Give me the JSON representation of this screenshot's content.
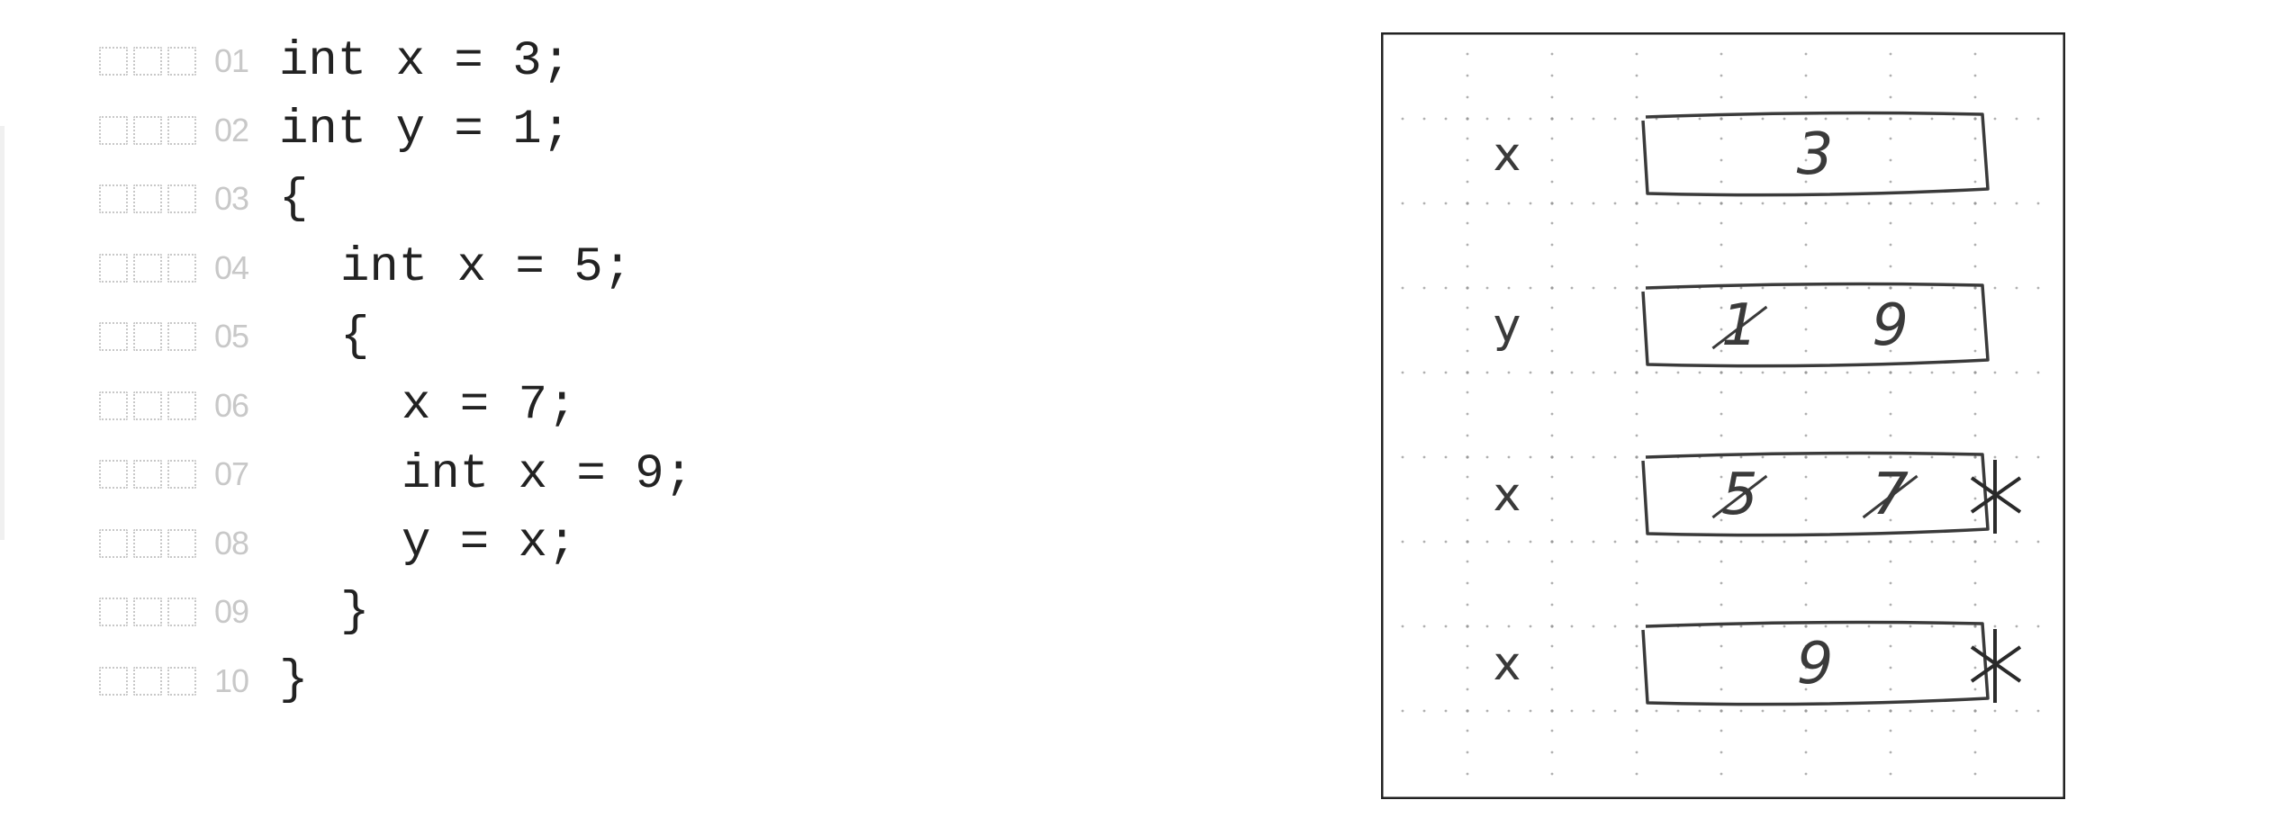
{
  "code": {
    "lines": [
      {
        "num": "01",
        "indent": 0,
        "text": "int x = 3;"
      },
      {
        "num": "02",
        "indent": 0,
        "text": "int y = 1;"
      },
      {
        "num": "03",
        "indent": 0,
        "text": "{"
      },
      {
        "num": "04",
        "indent": 1,
        "text": "int x = 5;"
      },
      {
        "num": "05",
        "indent": 1,
        "text": "{"
      },
      {
        "num": "06",
        "indent": 2,
        "text": "x = 7;"
      },
      {
        "num": "07",
        "indent": 2,
        "text": "int x = 9;"
      },
      {
        "num": "08",
        "indent": 2,
        "text": "y = x;"
      },
      {
        "num": "09",
        "indent": 1,
        "text": "}"
      },
      {
        "num": "10",
        "indent": 0,
        "text": "}"
      }
    ]
  },
  "memory": {
    "rows": [
      {
        "label": "x",
        "values": [
          {
            "text": "3",
            "crossed": false
          }
        ],
        "popped": false
      },
      {
        "label": "y",
        "values": [
          {
            "text": "1",
            "crossed": true
          },
          {
            "text": "9",
            "crossed": false
          }
        ],
        "popped": false
      },
      {
        "label": "x",
        "values": [
          {
            "text": "5",
            "crossed": true
          },
          {
            "text": "7",
            "crossed": true
          }
        ],
        "popped": true
      },
      {
        "label": "x",
        "values": [
          {
            "text": "9",
            "crossed": false
          }
        ],
        "popped": true
      }
    ]
  }
}
